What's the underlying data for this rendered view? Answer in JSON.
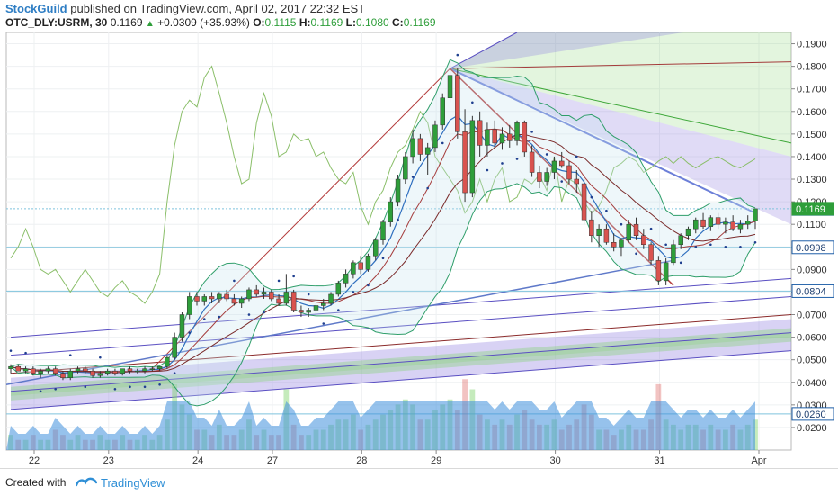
{
  "header": {
    "publisher": "StockGuild",
    "published_text": "published on TradingView.com, April 02, 2017 22:32 EST"
  },
  "legend": {
    "symbol": "OTC_DLY:USRM, 30",
    "last": "0.1169",
    "change_text": "+0.0309 (+35.93%)",
    "o_label": "O:",
    "o_value": "0.1115",
    "h_label": "H:",
    "h_value": "0.1169",
    "l_label": "L:",
    "l_value": "0.1080",
    "c_label": "C:",
    "c_value": "0.1169"
  },
  "footer": {
    "created_with": "Created with",
    "brand": "TradingView"
  },
  "colors": {
    "up": "#2e9e3a",
    "down": "#d9534f",
    "accent": "#2f7ec4",
    "fib_purple": "#8e7fe0",
    "fib_green": "#7ed36a"
  },
  "chart_data": {
    "type": "candlestick",
    "x_axis": {
      "tick_labels": [
        "22",
        "23",
        "24",
        "27",
        "28",
        "29",
        "30",
        "31",
        "Apr"
      ]
    },
    "y_axis": {
      "ylim": [
        0.01,
        0.195
      ],
      "tick_labels": [
        "0.1900",
        "0.1800",
        "0.1700",
        "0.1600",
        "0.1500",
        "0.1400",
        "0.1300",
        "0.1200",
        "0.1100",
        "0.1000",
        "0.0900",
        "0.0800",
        "0.0700",
        "0.0600",
        "0.0500",
        "0.0400",
        "0.0300",
        "0.0200"
      ],
      "price_tags": [
        {
          "label": "0.1168",
          "value": 0.1168,
          "style": "outline"
        },
        {
          "label": "0.1169",
          "value": 0.1169,
          "style": "green"
        },
        {
          "label": "0.0998",
          "value": 0.0998,
          "style": "outline"
        },
        {
          "label": "0.0804",
          "value": 0.0804,
          "style": "outline"
        },
        {
          "label": "0.0260",
          "value": 0.026,
          "style": "outline"
        }
      ]
    },
    "candles": [
      [
        0.046,
        0.048,
        0.044,
        0.047
      ],
      [
        0.047,
        0.048,
        0.045,
        0.045
      ],
      [
        0.045,
        0.047,
        0.044,
        0.046
      ],
      [
        0.046,
        0.047,
        0.043,
        0.044
      ],
      [
        0.044,
        0.046,
        0.042,
        0.045
      ],
      [
        0.045,
        0.047,
        0.044,
        0.046
      ],
      [
        0.046,
        0.047,
        0.043,
        0.044
      ],
      [
        0.044,
        0.045,
        0.041,
        0.042
      ],
      [
        0.042,
        0.046,
        0.041,
        0.045
      ],
      [
        0.045,
        0.047,
        0.044,
        0.046
      ],
      [
        0.046,
        0.047,
        0.044,
        0.045
      ],
      [
        0.045,
        0.046,
        0.042,
        0.043
      ],
      [
        0.043,
        0.045,
        0.042,
        0.044
      ],
      [
        0.044,
        0.046,
        0.043,
        0.045
      ],
      [
        0.045,
        0.046,
        0.043,
        0.044
      ],
      [
        0.044,
        0.046,
        0.043,
        0.046
      ],
      [
        0.046,
        0.047,
        0.044,
        0.045
      ],
      [
        0.045,
        0.046,
        0.044,
        0.045
      ],
      [
        0.045,
        0.047,
        0.044,
        0.046
      ],
      [
        0.046,
        0.047,
        0.045,
        0.046
      ],
      [
        0.046,
        0.047,
        0.045,
        0.047
      ],
      [
        0.047,
        0.052,
        0.046,
        0.051
      ],
      [
        0.051,
        0.062,
        0.05,
        0.06
      ],
      [
        0.06,
        0.071,
        0.058,
        0.07
      ],
      [
        0.07,
        0.08,
        0.068,
        0.078
      ],
      [
        0.078,
        0.08,
        0.074,
        0.076
      ],
      [
        0.076,
        0.079,
        0.074,
        0.078
      ],
      [
        0.078,
        0.08,
        0.075,
        0.077
      ],
      [
        0.077,
        0.08,
        0.075,
        0.079
      ],
      [
        0.079,
        0.081,
        0.076,
        0.077
      ],
      [
        0.077,
        0.079,
        0.074,
        0.075
      ],
      [
        0.075,
        0.078,
        0.073,
        0.077
      ],
      [
        0.077,
        0.082,
        0.076,
        0.081
      ],
      [
        0.081,
        0.083,
        0.078,
        0.079
      ],
      [
        0.079,
        0.082,
        0.077,
        0.08
      ],
      [
        0.08,
        0.081,
        0.076,
        0.077
      ],
      [
        0.077,
        0.079,
        0.074,
        0.075
      ],
      [
        0.075,
        0.088,
        0.074,
        0.08
      ],
      [
        0.08,
        0.081,
        0.071,
        0.072
      ],
      [
        0.072,
        0.074,
        0.069,
        0.071
      ],
      [
        0.071,
        0.073,
        0.069,
        0.072
      ],
      [
        0.072,
        0.075,
        0.07,
        0.074
      ],
      [
        0.074,
        0.077,
        0.072,
        0.075
      ],
      [
        0.075,
        0.08,
        0.074,
        0.079
      ],
      [
        0.079,
        0.085,
        0.078,
        0.084
      ],
      [
        0.084,
        0.09,
        0.082,
        0.088
      ],
      [
        0.088,
        0.094,
        0.086,
        0.093
      ],
      [
        0.093,
        0.096,
        0.088,
        0.09
      ],
      [
        0.09,
        0.097,
        0.089,
        0.096
      ],
      [
        0.096,
        0.104,
        0.094,
        0.103
      ],
      [
        0.103,
        0.112,
        0.101,
        0.111
      ],
      [
        0.111,
        0.122,
        0.109,
        0.12
      ],
      [
        0.12,
        0.132,
        0.118,
        0.13
      ],
      [
        0.13,
        0.142,
        0.128,
        0.14
      ],
      [
        0.14,
        0.152,
        0.137,
        0.148
      ],
      [
        0.148,
        0.15,
        0.138,
        0.141
      ],
      [
        0.141,
        0.146,
        0.132,
        0.144
      ],
      [
        0.144,
        0.156,
        0.142,
        0.154
      ],
      [
        0.154,
        0.168,
        0.152,
        0.166
      ],
      [
        0.166,
        0.182,
        0.164,
        0.176
      ],
      [
        0.176,
        0.179,
        0.148,
        0.151
      ],
      [
        0.151,
        0.161,
        0.12,
        0.124
      ],
      [
        0.124,
        0.158,
        0.122,
        0.156
      ],
      [
        0.156,
        0.16,
        0.14,
        0.145
      ],
      [
        0.145,
        0.155,
        0.14,
        0.152
      ],
      [
        0.152,
        0.156,
        0.144,
        0.146
      ],
      [
        0.146,
        0.153,
        0.143,
        0.15
      ],
      [
        0.15,
        0.154,
        0.144,
        0.147
      ],
      [
        0.147,
        0.156,
        0.145,
        0.155
      ],
      [
        0.155,
        0.156,
        0.14,
        0.142
      ],
      [
        0.142,
        0.145,
        0.131,
        0.133
      ],
      [
        0.133,
        0.136,
        0.126,
        0.129
      ],
      [
        0.129,
        0.135,
        0.127,
        0.133
      ],
      [
        0.133,
        0.14,
        0.13,
        0.138
      ],
      [
        0.138,
        0.142,
        0.135,
        0.136
      ],
      [
        0.136,
        0.138,
        0.128,
        0.13
      ],
      [
        0.13,
        0.134,
        0.124,
        0.128
      ],
      [
        0.128,
        0.13,
        0.11,
        0.112
      ],
      [
        0.112,
        0.116,
        0.102,
        0.105
      ],
      [
        0.105,
        0.11,
        0.1,
        0.108
      ],
      [
        0.108,
        0.11,
        0.101,
        0.102
      ],
      [
        0.102,
        0.106,
        0.098,
        0.1
      ],
      [
        0.1,
        0.104,
        0.096,
        0.103
      ],
      [
        0.103,
        0.112,
        0.102,
        0.11
      ],
      [
        0.11,
        0.113,
        0.103,
        0.105
      ],
      [
        0.105,
        0.108,
        0.099,
        0.101
      ],
      [
        0.101,
        0.102,
        0.092,
        0.094
      ],
      [
        0.094,
        0.096,
        0.083,
        0.085
      ],
      [
        0.085,
        0.095,
        0.083,
        0.093
      ],
      [
        0.093,
        0.103,
        0.092,
        0.101
      ],
      [
        0.101,
        0.106,
        0.099,
        0.105
      ],
      [
        0.105,
        0.109,
        0.103,
        0.108
      ],
      [
        0.108,
        0.113,
        0.106,
        0.112
      ],
      [
        0.112,
        0.115,
        0.108,
        0.109
      ],
      [
        0.109,
        0.114,
        0.107,
        0.113
      ],
      [
        0.113,
        0.115,
        0.108,
        0.11
      ],
      [
        0.11,
        0.113,
        0.106,
        0.111
      ],
      [
        0.111,
        0.114,
        0.107,
        0.108
      ],
      [
        0.108,
        0.112,
        0.106,
        0.11
      ],
      [
        0.11,
        0.114,
        0.108,
        0.1115
      ],
      [
        0.1115,
        0.1169,
        0.108,
        0.1169
      ]
    ],
    "day_starts": [
      0,
      10,
      22,
      32,
      44,
      54,
      70,
      84
    ],
    "volume": [
      3,
      2,
      2,
      3,
      2,
      2,
      4,
      3,
      2,
      3,
      2,
      2,
      3,
      2,
      2,
      3,
      2,
      2,
      3,
      2,
      3,
      6,
      13,
      9,
      7,
      4,
      4,
      3,
      5,
      3,
      3,
      4,
      6,
      3,
      4,
      3,
      3,
      12,
      5,
      3,
      3,
      4,
      4,
      5,
      6,
      6,
      7,
      4,
      5,
      6,
      7,
      8,
      9,
      10,
      9,
      6,
      6,
      8,
      9,
      10,
      8,
      14,
      12,
      7,
      6,
      5,
      6,
      5,
      7,
      8,
      6,
      5,
      5,
      6,
      4,
      5,
      6,
      9,
      7,
      4,
      4,
      3,
      4,
      5,
      4,
      4,
      6,
      13,
      6,
      5,
      4,
      5,
      5,
      4,
      5,
      4,
      4,
      5,
      4,
      5,
      6
    ],
    "indicator_line": [
      0.095,
      0.1,
      0.108,
      0.1,
      0.09,
      0.088,
      0.09,
      0.085,
      0.08,
      0.085,
      0.09,
      0.085,
      0.08,
      0.078,
      0.082,
      0.085,
      0.08,
      0.078,
      0.075,
      0.08,
      0.088,
      0.12,
      0.145,
      0.16,
      0.165,
      0.162,
      0.175,
      0.18,
      0.168,
      0.155,
      0.14,
      0.128,
      0.13,
      0.155,
      0.168,
      0.158,
      0.14,
      0.142,
      0.15,
      0.147,
      0.148,
      0.14,
      0.142,
      0.135,
      0.13,
      0.128,
      0.133,
      0.118,
      0.11,
      0.12,
      0.125,
      0.135,
      0.142,
      0.145,
      0.152,
      0.16,
      0.155,
      0.14,
      0.135,
      0.13,
      0.125,
      0.115,
      0.12,
      0.13,
      0.12,
      0.13,
      0.135,
      0.12,
      0.122,
      0.13,
      0.128,
      0.132,
      0.125,
      0.14,
      0.12,
      0.13,
      0.128,
      0.12,
      0.115,
      0.118,
      0.125,
      0.135,
      0.137,
      0.14,
      0.138,
      0.133,
      0.135,
      0.138,
      0.14,
      0.137,
      0.14,
      0.137,
      0.135,
      0.137,
      0.139,
      0.14,
      0.138,
      0.136,
      0.135,
      0.137,
      0.139
    ],
    "annotations": {
      "fib_fan": {
        "origin_index": 59,
        "origin_price": 0.179
      },
      "trend_low": {
        "start_index": 19,
        "start_price": 0.046,
        "end_index": 59,
        "end_price": 0.179
      },
      "pitchfork_bottom": {
        "start_index": 0,
        "end_index": 100
      },
      "horizontal_lines": [
        0.0998,
        0.0804,
        0.026,
        0.1169
      ]
    },
    "title": "",
    "xlabel": "",
    "ylabel": ""
  }
}
